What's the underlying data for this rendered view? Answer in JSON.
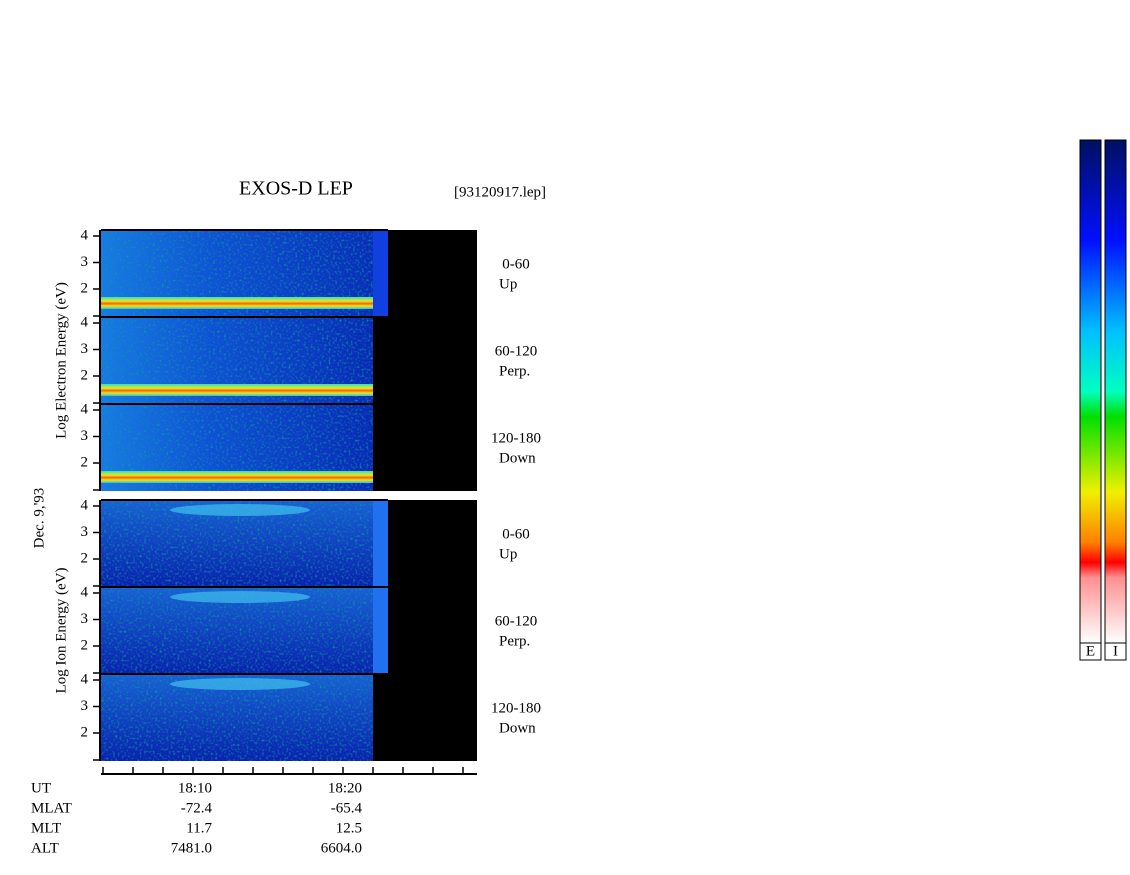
{
  "header": {
    "title": "EXOS-D LEP",
    "file": "[93120917.lep]",
    "date": "Dec. 9,'93"
  },
  "groups": [
    {
      "axis_label": "Log Electron Energy (eV)",
      "panels": [
        {
          "range": "0-60",
          "direction": "Up",
          "yticks": [
            "4",
            "3",
            "2"
          ]
        },
        {
          "range": "60-120",
          "direction": "Perp.",
          "yticks": [
            "4",
            "3",
            "2"
          ]
        },
        {
          "range": "120-180",
          "direction": "Down",
          "yticks": [
            "4",
            "3",
            "2"
          ]
        }
      ]
    },
    {
      "axis_label": "Log Ion Energy (eV)",
      "panels": [
        {
          "range": "0-60",
          "direction": "Up",
          "yticks": [
            "4",
            "3",
            "2"
          ]
        },
        {
          "range": "60-120",
          "direction": "Perp.",
          "yticks": [
            "4",
            "3",
            "2"
          ]
        },
        {
          "range": "120-180",
          "direction": "Down",
          "yticks": [
            "4",
            "3",
            "2"
          ]
        }
      ]
    }
  ],
  "footer": {
    "rows": [
      {
        "label": "UT",
        "values": [
          "18:10",
          "18:20"
        ]
      },
      {
        "label": "MLAT",
        "values": [
          "-72.4",
          "-65.4"
        ]
      },
      {
        "label": "MLT",
        "values": [
          "11.7",
          "12.5"
        ]
      },
      {
        "label": "ALT",
        "values": [
          "7481.0",
          "6604.0"
        ]
      }
    ]
  },
  "colorbars": [
    "E",
    "I"
  ]
}
